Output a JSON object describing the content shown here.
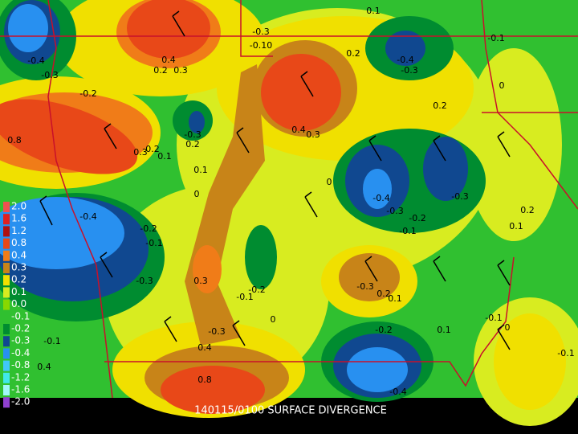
{
  "caption": "140115/0100 SURFACE DIVERGENCE",
  "legend": {
    "labels": [
      "2.0",
      "1.6",
      "1.2",
      "0.8",
      "0.4",
      "0.3",
      "0.2",
      "0.1",
      "0.0",
      "-0.1",
      "-0.2",
      "-0.3",
      "-0.4",
      "-0.8",
      "-1.2",
      "-1.6",
      "-2.0"
    ],
    "colors": [
      "#f05050",
      "#e02020",
      "#b01010",
      "#e84818",
      "#f07c18",
      "#c88418",
      "#f0e000",
      "#d8ec20",
      "#88d800",
      "#30c030",
      "#008c30",
      "#104890",
      "#2890f0",
      "#40c8f8",
      "#40e8e8",
      "#a0f8f8",
      "#9040d0"
    ]
  },
  "contour_labels": [
    "-0.4",
    "-0.3",
    "-0.2",
    "0.8",
    "-0.4",
    "-0.2",
    "-0.1",
    "-0.3",
    "0.4",
    "0.2",
    "0.3",
    "-0.3",
    "0.2",
    "0.1",
    "0",
    "0.3",
    "-0.3",
    "0.4",
    "0.8",
    "-0.1",
    "-0.2",
    "0",
    "0.4",
    "0.3",
    "0.2",
    "-0.3",
    "-0.10",
    "-0.4",
    "-0.3",
    "0.2",
    "0",
    "-0.4",
    "-0.3",
    "-0.2",
    "-0.1",
    "-0.3",
    "0.2",
    "0.1",
    "-0.1",
    "0",
    "0.1",
    "-0.3",
    "0.2",
    "0.1",
    "-0.2",
    "0.1",
    "-0.1",
    "0",
    "-0.1",
    "-0.4",
    "-0.1",
    "0.4",
    "0.3",
    "0.1",
    "0.2"
  ]
}
